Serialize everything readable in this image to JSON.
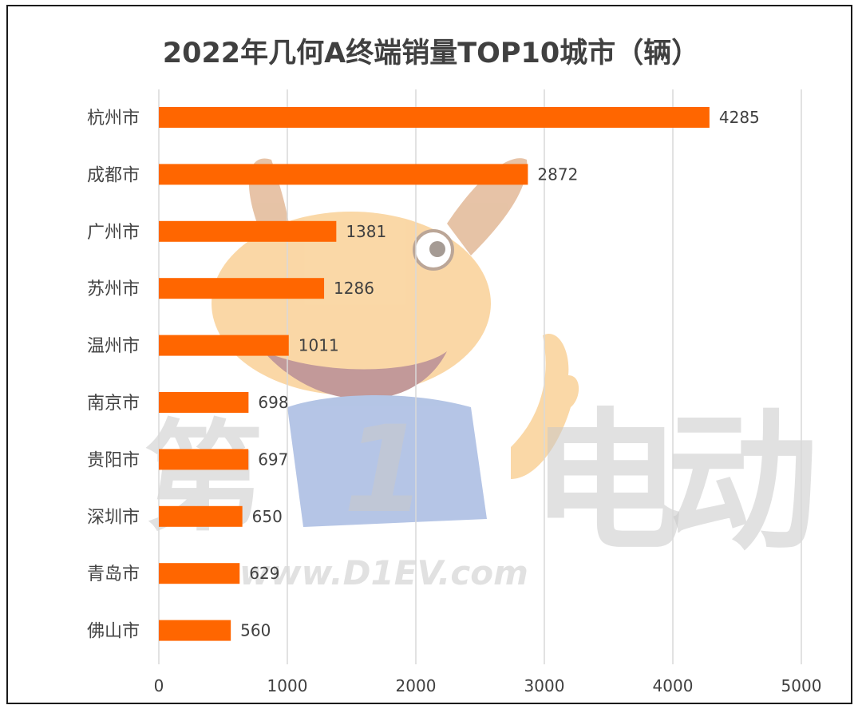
{
  "chart_data": {
    "type": "bar",
    "orientation": "horizontal",
    "title": "2022年几何A终端销量TOP10城市（辆）",
    "categories": [
      "杭州市",
      "成都市",
      "广州市",
      "苏州市",
      "温州市",
      "南京市",
      "贵阳市",
      "深圳市",
      "青岛市",
      "佛山市"
    ],
    "values": [
      4285,
      2872,
      1381,
      1286,
      1011,
      698,
      697,
      650,
      629,
      560
    ],
    "xlim": [
      0,
      5000
    ],
    "x_ticks": [
      0,
      1000,
      2000,
      3000,
      4000,
      5000
    ],
    "grid": "vertical",
    "legend": "none",
    "bar_color": "#ff6600",
    "watermark": {
      "cn_chars": [
        "第",
        "1",
        "电",
        "动"
      ],
      "url": "www.D1EV.com",
      "mascot": "cartoon-deer"
    }
  }
}
